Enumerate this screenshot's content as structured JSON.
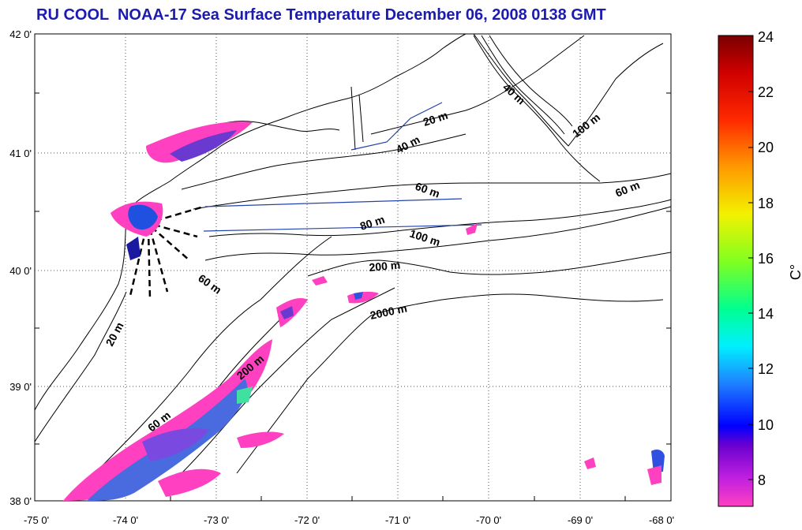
{
  "title": "RU COOL  NOAA-17 Sea Surface Temperature December 06, 2008 0138 GMT",
  "map": {
    "lat_labels": [
      "42 0'",
      "41 0'",
      "40 0'",
      "39 0'",
      "38 0'"
    ],
    "lon_labels": [
      "-75 0'",
      "-74 0'",
      "-73 0'",
      "-72 0'",
      "-71 0'",
      "-70 0'",
      "-69 0'",
      "-68 0'"
    ],
    "contour_labels": [
      "20 m",
      "40 m",
      "60 m",
      "80 m",
      "100 m",
      "200 m",
      "2000 m",
      "40 m",
      "100 m",
      "60 m",
      "60 m",
      "20 m",
      "200 m",
      "60 m"
    ]
  },
  "colorbar": {
    "unit": "C°",
    "ticks": [
      "24",
      "22",
      "20",
      "18",
      "16",
      "14",
      "12",
      "10",
      "8"
    ],
    "colors": [
      "#8b0000",
      "#ff0000",
      "#ff8c00",
      "#ffff00",
      "#7cfc00",
      "#00ffff",
      "#1e90ff",
      "#0000ff",
      "#ff33cc"
    ]
  }
}
